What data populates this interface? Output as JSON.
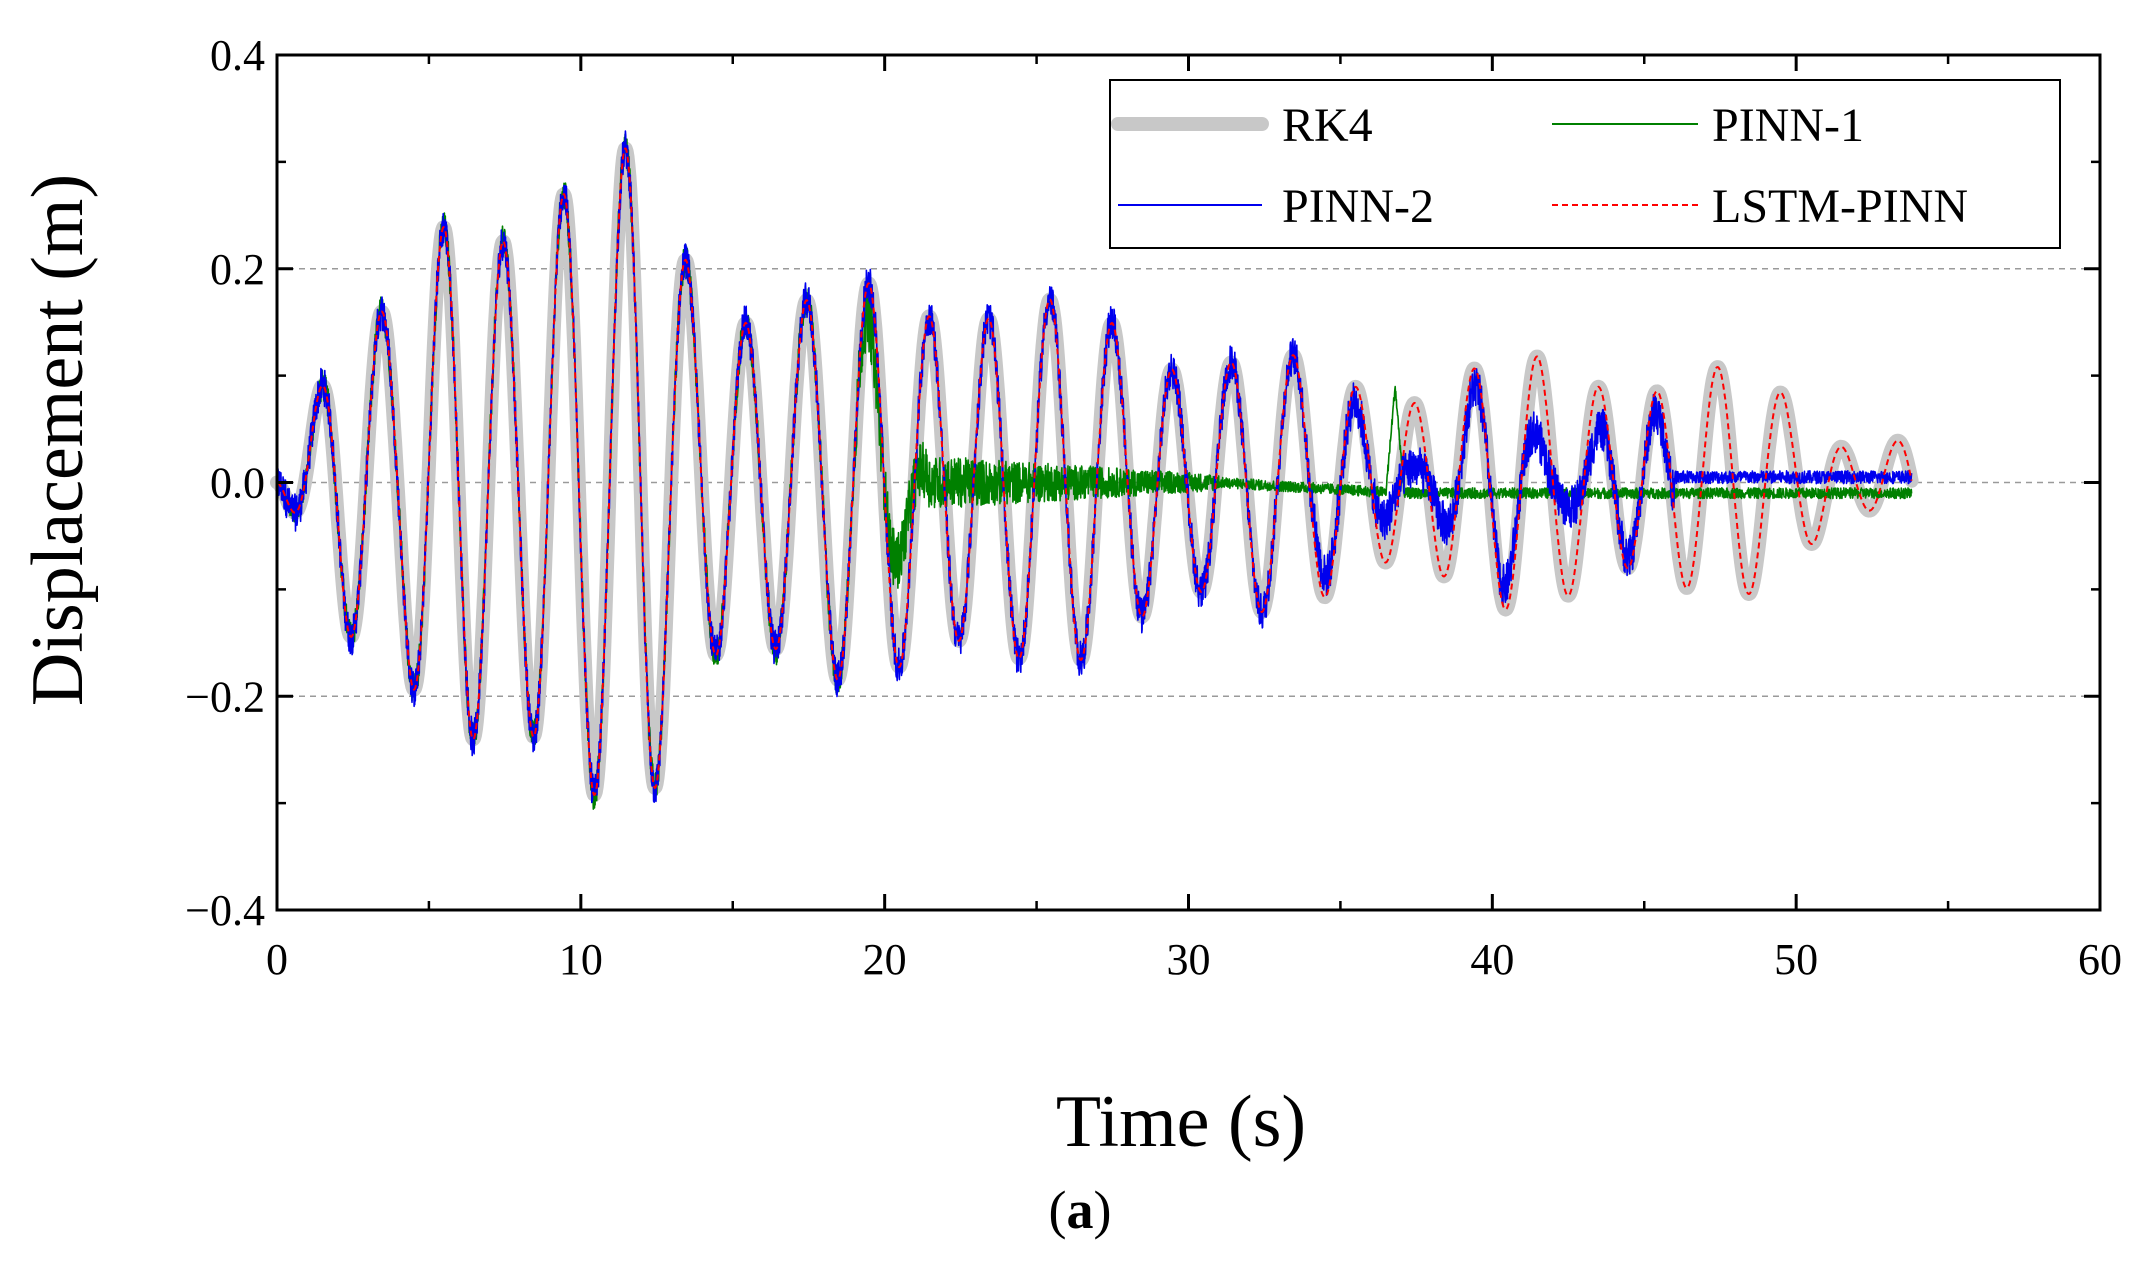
{
  "chart_data": {
    "type": "line",
    "title": "",
    "panel_label": {
      "open": "(",
      "letter": "a",
      "close": ")"
    },
    "xlabel": "Time (s)",
    "ylabel": "Displacement (m)",
    "xlim": [
      0,
      60
    ],
    "ylim": [
      -0.4,
      0.4
    ],
    "x_ticks": [
      0,
      10,
      20,
      30,
      40,
      50,
      60
    ],
    "x_tick_labels": [
      "0",
      "10",
      "20",
      "30",
      "40",
      "50",
      "60"
    ],
    "y_ticks": [
      -0.4,
      -0.2,
      0.0,
      0.2,
      0.4
    ],
    "y_tick_labels": [
      "−0.4",
      "−0.2",
      "0.0",
      "0.2",
      "0.4"
    ],
    "grid": {
      "horizontal_dashed_at": [
        -0.2,
        0.0,
        0.2
      ]
    },
    "legend_position": "top-right",
    "duration_s": 53.8,
    "envelope": {
      "t": [
        0,
        1,
        2,
        3,
        4,
        5,
        6,
        7,
        8,
        9,
        10,
        11,
        12,
        13,
        14,
        15,
        16,
        17,
        18,
        19,
        20,
        22,
        24,
        26,
        28,
        30,
        32,
        34,
        36,
        38,
        40,
        42,
        44,
        46,
        48,
        50,
        52,
        53.8
      ],
      "amplitude": [
        0.0,
        0.06,
        0.13,
        0.14,
        0.14,
        0.22,
        0.26,
        0.25,
        0.24,
        0.26,
        0.27,
        0.28,
        0.31,
        0.24,
        0.19,
        0.17,
        0.16,
        0.155,
        0.16,
        0.17,
        0.175,
        0.17,
        0.16,
        0.15,
        0.14,
        0.12,
        0.11,
        0.095,
        0.09,
        0.095,
        0.1,
        0.1,
        0.1,
        0.1,
        0.09,
        0.065,
        0.045,
        0.045
      ]
    },
    "series": [
      {
        "name": "RK4",
        "color": "#c8c8c8",
        "style": "solid-thick",
        "behavior": "reference"
      },
      {
        "name": "PINN-1",
        "color": "#008000",
        "style": "solid-thin",
        "behavior": "tracks reference until ~19 s, then noisy near zero"
      },
      {
        "name": "PINN-2",
        "color": "#0000ee",
        "style": "solid-thin",
        "behavior": "tracks reference until ~34 s, then partial/noisy"
      },
      {
        "name": "LSTM-PINN",
        "color": "#ff0000",
        "style": "dashed",
        "behavior": "matches reference throughout"
      }
    ]
  }
}
